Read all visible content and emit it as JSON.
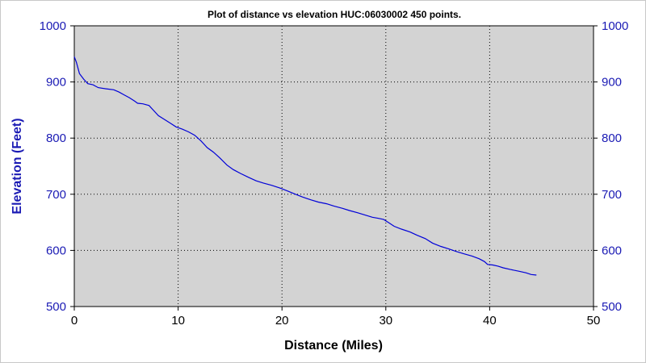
{
  "chart_data": {
    "type": "line",
    "title": "Plot of distance vs elevation  HUC:06030002 450 points.",
    "xlabel": "Distance (Miles)",
    "ylabel": "Elevation (Feet)",
    "xlim": [
      0,
      50
    ],
    "ylim": [
      500,
      1000
    ],
    "x_ticks": [
      "0",
      "10",
      "20",
      "30",
      "40",
      "50"
    ],
    "y_ticks_left": [
      "500",
      "600",
      "700",
      "800",
      "900",
      "1000"
    ],
    "y_ticks_right": [
      "500",
      "600",
      "700",
      "800",
      "900",
      "1000"
    ],
    "grid": true,
    "legend": "none",
    "colors": {
      "plot_background": "#d3d3d3",
      "line": "#0000d8",
      "y_tick_labels": "#1a1ab4",
      "y_axis_title": "#1a1ab4"
    },
    "series": [
      {
        "x": [
          0,
          0.2,
          0.5,
          0.9,
          1.3,
          1.8,
          2.3,
          3.0,
          3.8,
          4.3,
          4.8,
          5.3,
          5.8,
          6.1,
          6.6,
          7.2,
          7.6,
          8.1,
          8.7,
          9.3,
          9.8,
          10.4,
          11.0,
          11.6,
          12.2,
          12.8,
          13.4,
          14.0,
          14.7,
          15.3,
          16.0,
          16.8,
          17.5,
          18.2,
          19.0,
          19.8,
          20.5,
          21.3,
          22.0,
          22.8,
          23.5,
          24.3,
          25.0,
          25.8,
          26.5,
          27.3,
          28.0,
          28.7,
          29.3,
          29.8,
          30.3,
          30.8,
          31.5,
          32.3,
          33.0,
          33.8,
          34.5,
          35.3,
          36.0,
          36.8,
          37.5,
          38.3,
          39.0,
          39.5,
          39.8,
          40.3,
          40.8,
          41.3,
          42.0,
          42.8,
          43.5,
          44.0,
          44.5
        ],
        "y": [
          945,
          935,
          915,
          905,
          897,
          895,
          890,
          888,
          886,
          882,
          877,
          872,
          866,
          862,
          861,
          858,
          850,
          840,
          833,
          826,
          820,
          816,
          811,
          805,
          795,
          783,
          775,
          765,
          752,
          744,
          737,
          730,
          724,
          720,
          716,
          711,
          706,
          700,
          695,
          690,
          686,
          683,
          679,
          675,
          671,
          667,
          663,
          659,
          657,
          655,
          649,
          643,
          638,
          633,
          627,
          621,
          613,
          607,
          603,
          598,
          594,
          590,
          585,
          580,
          575,
          574,
          572,
          569,
          566,
          563,
          560,
          557,
          556
        ]
      }
    ]
  }
}
